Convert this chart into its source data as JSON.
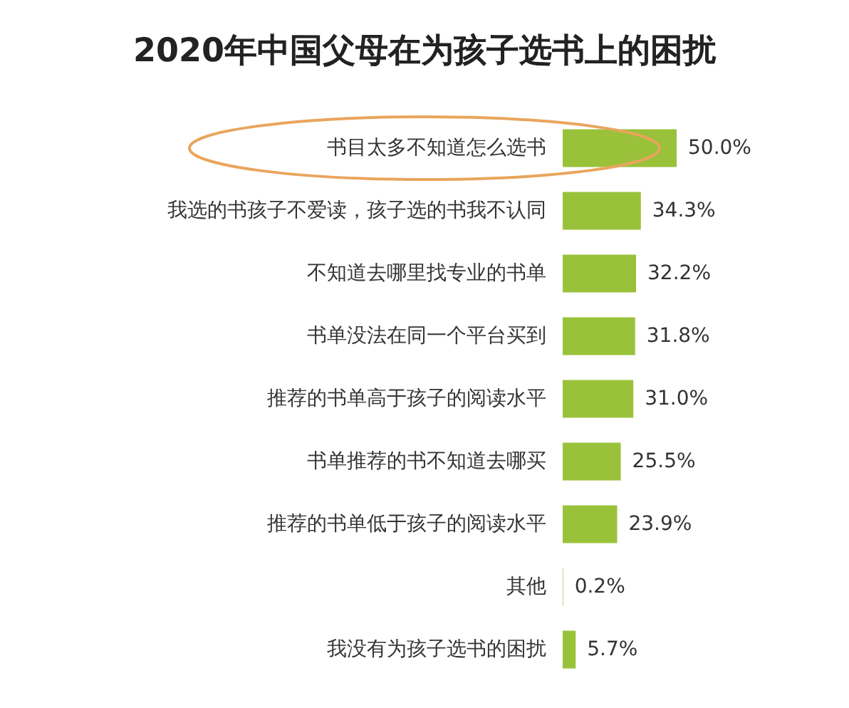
{
  "chart_data": {
    "type": "bar",
    "orientation": "horizontal",
    "title": "2020年中国父母在为孩子选书上的困扰",
    "categories": [
      "书目太多不知道怎么选书",
      "我选的书孩子不爱读，孩子选的书我不认同",
      "不知道去哪里找专业的书单",
      "书单没法在同一个平台买到",
      "推荐的书单高于孩子的阅读水平",
      "书单推荐的书不知道去哪买",
      "推荐的书单低于孩子的阅读水平",
      "其他",
      "我没有为孩子选书的困扰"
    ],
    "values": [
      50.0,
      34.3,
      32.2,
      31.8,
      31.0,
      25.5,
      23.9,
      0.2,
      5.7
    ],
    "value_labels": [
      "50.0%",
      "34.3%",
      "32.2%",
      "31.8%",
      "31.0%",
      "25.5%",
      "23.9%",
      "0.2%",
      "5.7%"
    ],
    "color": "#99c23a"
  }
}
